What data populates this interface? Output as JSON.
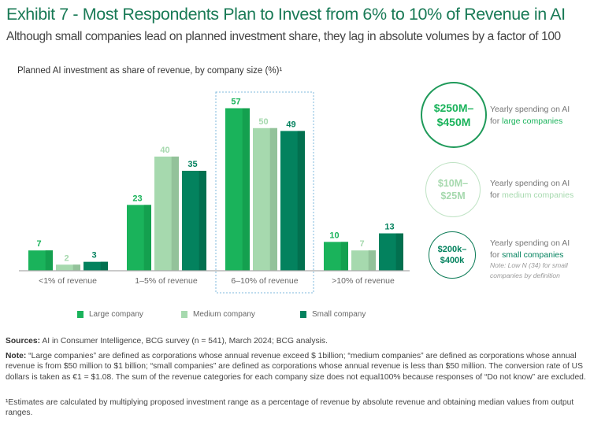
{
  "title": "Exhibit 7 - Most Respondents Plan to Invest from 6% to 10% of Revenue in AI",
  "subtitle": "Although small companies lead on planned investment share, they lag in absolute volumes by a factor of 100",
  "colors": {
    "title": "#197A56",
    "large": "#1AB35B",
    "medium": "#A6D9AE",
    "small": "#03825E",
    "highlight_box": "#7FB9DC"
  },
  "chart_data": {
    "type": "bar",
    "title": "Planned AI investment as share of revenue, by company size (%)¹",
    "categories": [
      "<1% of revenue",
      "1–5% of revenue",
      "6–10% of revenue",
      ">10% of revenue"
    ],
    "series": [
      {
        "name": "Large company",
        "values": [
          7,
          23,
          57,
          10
        ]
      },
      {
        "name": "Medium company",
        "values": [
          2,
          40,
          50,
          7
        ]
      },
      {
        "name": "Small company",
        "values": [
          3,
          35,
          49,
          13
        ]
      }
    ],
    "highlighted_category": "6–10% of revenue",
    "ylim": [
      0,
      60
    ],
    "grid": false,
    "legend_position": "bottom",
    "data_labels": true
  },
  "callouts": [
    {
      "amount_line1": "$250M–",
      "amount_line2": "$450M",
      "text": "Yearly spending on AI",
      "for": "for ",
      "size": "large companies",
      "color": "#1AB35B",
      "ring": "#1F9A5A",
      "amount_color": "#1AB35B"
    },
    {
      "amount_line1": "$10M–",
      "amount_line2": "$25M",
      "text": "Yearly spending on AI",
      "for": "for ",
      "size": "medium companies",
      "color": "#A6D9AE",
      "ring": "#BFE3C4",
      "amount_color": "#A6D9AE"
    },
    {
      "amount_line1": "$200k–",
      "amount_line2": "$400k",
      "text": "Yearly spending on AI",
      "for": "for ",
      "size": "small companies",
      "color": "#03825E",
      "ring": "#0A7A55",
      "amount_color": "#03825E",
      "note_line1": "Note: Low N (34) for small",
      "note_line2": "companies by definition"
    }
  ],
  "footnotes": {
    "sources_label": "Sources:",
    "sources": " AI in Consumer Intelligence, BCG survey (n = 541), March 2024; BCG analysis.",
    "note_label": "Note:",
    "note": " “Large companies” are defined as corporations whose annual revenue exceed $ 1billion; “medium companies” are defined as corporations whose annual revenue is from $50 million to $1 billion;  “small companies” are defined as corporations whose annual revenue is less than $50 million. The conversion rate of US dollars is taken as €1 = $1.08. The sum of the revenue categories for each company size does not equal100% because responses of “Do not know” are excluded.",
    "estimate": "¹Estimates are calculated by multiplying proposed investment range as a percentage of revenue by absolute revenue and obtaining median values from output ranges."
  }
}
